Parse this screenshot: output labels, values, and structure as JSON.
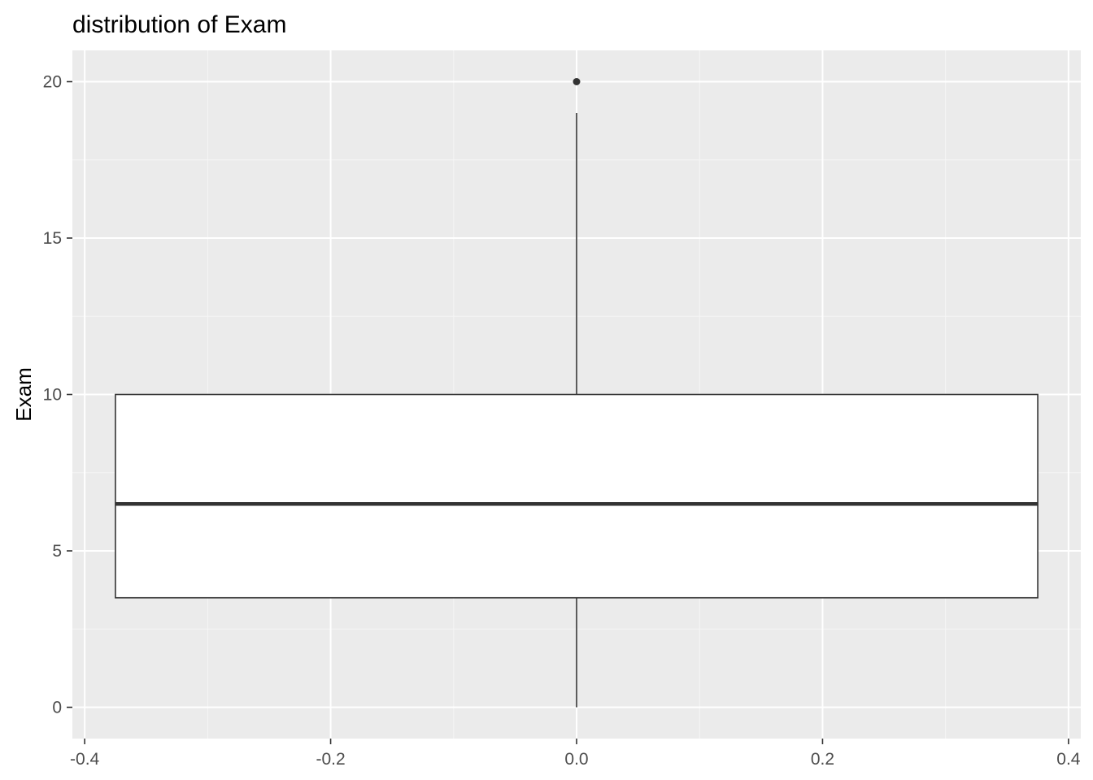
{
  "chart_data": {
    "type": "boxplot",
    "title": "distribution of Exam",
    "xlabel": "",
    "ylabel": "Exam",
    "xlim": [
      -0.41,
      0.41
    ],
    "ylim": [
      -1,
      21
    ],
    "x_ticks": [
      -0.4,
      -0.2,
      0.0,
      0.2,
      0.4
    ],
    "x_tick_labels": [
      "-0.4",
      "-0.2",
      "0.0",
      "0.2",
      "0.4"
    ],
    "x_minor_ticks": [
      -0.3,
      -0.1,
      0.1,
      0.3
    ],
    "y_ticks": [
      0,
      5,
      10,
      15,
      20
    ],
    "y_tick_labels": [
      "0",
      "5",
      "10",
      "15",
      "20"
    ],
    "y_minor_ticks": [
      2.5,
      7.5,
      12.5,
      17.5
    ],
    "grid": true,
    "legend": "none",
    "box": {
      "x_center": 0.0,
      "x_min": -0.375,
      "x_max": 0.375,
      "whisker_low": 0,
      "q1": 3.5,
      "median": 6.5,
      "q3": 10,
      "whisker_high": 19
    },
    "outliers": [
      {
        "x": 0.0,
        "y": 20
      }
    ],
    "colors": {
      "panel_background": "#ebebeb",
      "grid_major": "#ffffff",
      "grid_minor": "#f5f5f5",
      "box_fill": "#ffffff",
      "box_line": "#333333",
      "tick_label": "#4d4d4d",
      "tick_mark": "#333333"
    }
  }
}
